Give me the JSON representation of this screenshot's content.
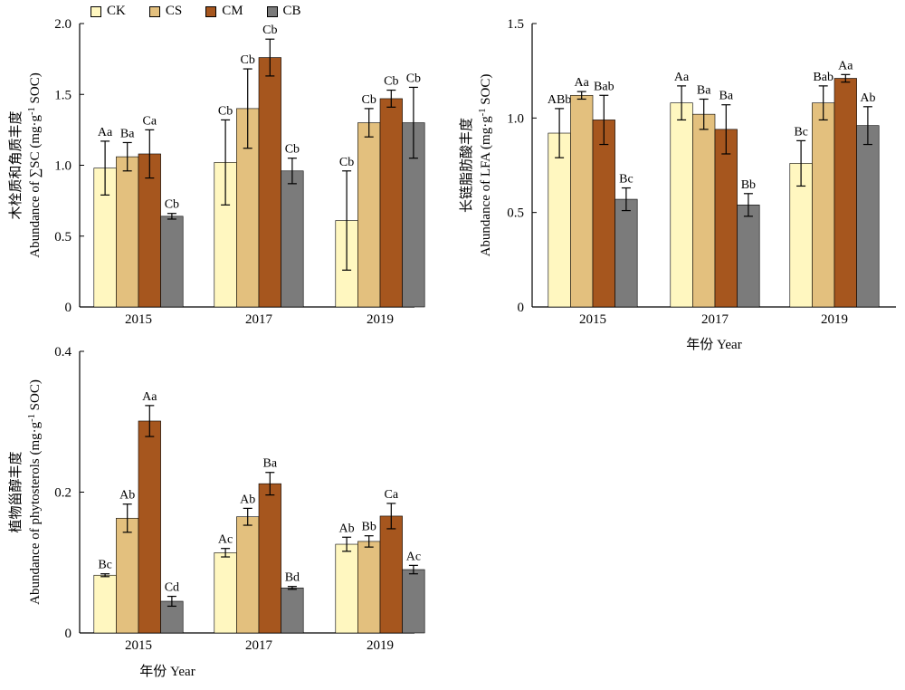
{
  "legend": [
    {
      "label": "CK",
      "color": "#FFF7C0"
    },
    {
      "label": "CS",
      "color": "#E3C07E"
    },
    {
      "label": "CM",
      "color": "#A6561E"
    },
    {
      "label": "CB",
      "color": "#7B7B7B"
    }
  ],
  "chart_data": [
    {
      "type": "bar",
      "categories": [
        "2015",
        "2017",
        "2019"
      ],
      "ylim": [
        0,
        2.0
      ],
      "ticks": [
        "0",
        "0.5",
        "1.0",
        "1.5",
        "2.0"
      ],
      "ylabel_cn": "木栓质和角质丰度",
      "ylabel_en": "Abundance of ∑SC (mg·g-1 SOC)",
      "series": [
        {
          "name": "CK",
          "values": [
            0.98,
            1.02,
            0.61
          ],
          "errors": [
            0.19,
            0.3,
            0.35
          ],
          "labels": [
            "Aa",
            "Cb",
            "Cb"
          ]
        },
        {
          "name": "CS",
          "values": [
            1.06,
            1.4,
            1.3
          ],
          "errors": [
            0.1,
            0.28,
            0.1
          ],
          "labels": [
            "Ba",
            "Cb",
            "Cb"
          ]
        },
        {
          "name": "CM",
          "values": [
            1.08,
            1.76,
            1.47
          ],
          "errors": [
            0.17,
            0.13,
            0.06
          ],
          "labels": [
            "Ca",
            "Cb",
            "Cb"
          ]
        },
        {
          "name": "CB",
          "values": [
            0.64,
            0.96,
            1.3
          ],
          "errors": [
            0.02,
            0.09,
            0.25
          ],
          "labels": [
            "Cb",
            "Cb",
            "Cb"
          ]
        }
      ]
    },
    {
      "type": "bar",
      "categories": [
        "2015",
        "2017",
        "2019"
      ],
      "ylim": [
        0,
        1.5
      ],
      "ticks": [
        "0",
        "0.5",
        "1.0",
        "1.5"
      ],
      "ylabel_cn": "长链脂肪酸丰度",
      "ylabel_en": "Abundance of LFA (mg·g-1 SOC)",
      "xlabel": "年份 Year",
      "series": [
        {
          "name": "CK",
          "values": [
            0.92,
            1.08,
            0.76
          ],
          "errors": [
            0.13,
            0.09,
            0.12
          ],
          "labels": [
            "ABb",
            "Aa",
            "Bc"
          ]
        },
        {
          "name": "CS",
          "values": [
            1.12,
            1.02,
            1.08
          ],
          "errors": [
            0.02,
            0.08,
            0.09
          ],
          "labels": [
            "Aa",
            "Ba",
            "Bab"
          ]
        },
        {
          "name": "CM",
          "values": [
            0.99,
            0.94,
            1.21
          ],
          "errors": [
            0.13,
            0.13,
            0.02
          ],
          "labels": [
            "Bab",
            "Ba",
            "Aa"
          ]
        },
        {
          "name": "CB",
          "values": [
            0.57,
            0.54,
            0.96
          ],
          "errors": [
            0.06,
            0.06,
            0.1
          ],
          "labels": [
            "Bc",
            "Bb",
            "Ab"
          ]
        }
      ]
    },
    {
      "type": "bar",
      "categories": [
        "2015",
        "2017",
        "2019"
      ],
      "ylim": [
        0,
        0.4
      ],
      "ticks": [
        "0",
        "0.2",
        "0.4"
      ],
      "ylabel_cn": "植物甾醇丰度",
      "ylabel_en": "Abundance of phytosterols (mg·g-1 SOC)",
      "xlabel": "年份 Year",
      "series": [
        {
          "name": "CK",
          "values": [
            0.082,
            0.114,
            0.126
          ],
          "errors": [
            0.002,
            0.006,
            0.01
          ],
          "labels": [
            "Bc",
            "Ac",
            "Ab"
          ]
        },
        {
          "name": "CS",
          "values": [
            0.163,
            0.165,
            0.13
          ],
          "errors": [
            0.02,
            0.012,
            0.008
          ],
          "labels": [
            "Ab",
            "Ab",
            "Bb"
          ]
        },
        {
          "name": "CM",
          "values": [
            0.301,
            0.212,
            0.166
          ],
          "errors": [
            0.022,
            0.016,
            0.018
          ],
          "labels": [
            "Aa",
            "Ba",
            "Ca"
          ]
        },
        {
          "name": "CB",
          "values": [
            0.045,
            0.064,
            0.09
          ],
          "errors": [
            0.007,
            0.002,
            0.006
          ],
          "labels": [
            "Cd",
            "Bd",
            "Ac"
          ]
        }
      ]
    }
  ]
}
